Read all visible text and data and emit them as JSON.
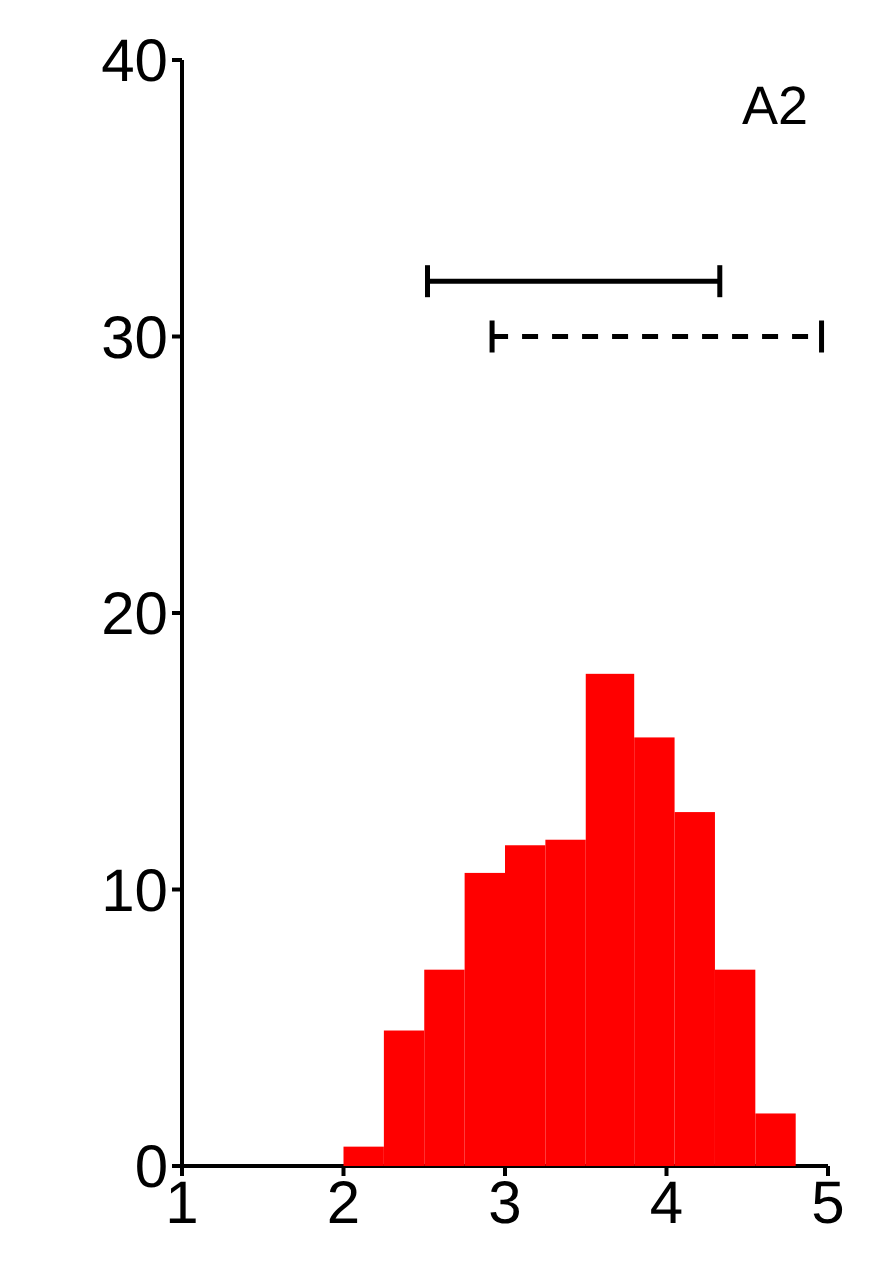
{
  "chart_data": {
    "type": "histogram",
    "annotations": [
      "A2"
    ],
    "bins": [
      2.0,
      2.25,
      2.5,
      2.75,
      3.0,
      3.25,
      3.5,
      3.8,
      4.05,
      4.3,
      4.55,
      4.8
    ],
    "values": [
      0.7,
      4.9,
      7.1,
      10.6,
      11.6,
      11.8,
      17.8,
      15.5,
      12.8,
      7.1,
      1.9
    ],
    "color": "#ff0000",
    "series": [
      {
        "type": "line",
        "x": [
          2.52,
          4.33
        ],
        "values": [
          32,
          32
        ],
        "line_style": "solid",
        "color": "#000000"
      },
      {
        "type": "line",
        "x": [
          2.92,
          4.96
        ],
        "values": [
          30,
          30
        ],
        "line_style": "dashed",
        "color": "#000000"
      }
    ],
    "xlim": [
      1,
      5
    ],
    "ylim": [
      0,
      40
    ],
    "xticks": [
      1,
      2,
      3,
      4,
      5
    ],
    "yticks": [
      0,
      10,
      20,
      30,
      40
    ]
  }
}
